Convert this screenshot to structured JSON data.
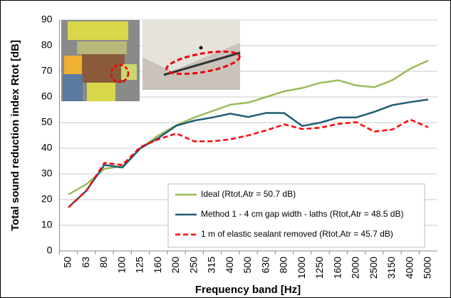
{
  "chart_data": {
    "type": "line",
    "y_label": "Total sound reduction index Rtot [dB]",
    "x_label": "Frequency band [Hz]",
    "categories": [
      "50",
      "63",
      "80",
      "100",
      "125",
      "160",
      "200",
      "250",
      "315",
      "400",
      "500",
      "630",
      "800",
      "1000",
      "1250",
      "1600",
      "2000",
      "2500",
      "3150",
      "4000",
      "5000"
    ],
    "series": [
      {
        "name": "Ideal (Rtot,Atr = 50.7 dB)",
        "color": "#9bbb59",
        "line_style": "solid",
        "values": [
          22,
          26,
          32,
          33,
          40,
          45,
          49,
          52,
          54.5,
          57,
          57.8,
          60,
          62.2,
          63.5,
          65.5,
          66.5,
          64.5,
          63.8,
          66.5,
          71,
          74.2
        ]
      },
      {
        "name": "Method 1 - 4 cm gap width - laths (Rtot,Atr = 48.5 dB)",
        "color": "#215e75",
        "line_style": "solid",
        "values": [
          17,
          23.5,
          33.5,
          32.5,
          40,
          44,
          48.8,
          50.8,
          52,
          53.5,
          52.2,
          53.8,
          53.7,
          48.7,
          50,
          52,
          52,
          54.2,
          56.8,
          58,
          59
        ]
      },
      {
        "name": "1 m of elastic sealant removed (Rtot,Atr = 45.7 dB)",
        "color": "#ff0000",
        "line_style": "dashed",
        "values": [
          17,
          23.5,
          34.3,
          33.5,
          40.5,
          43.5,
          45.8,
          42.7,
          42.7,
          43.5,
          45,
          47,
          49.3,
          47.5,
          48,
          49.5,
          50.2,
          46.5,
          47.3,
          51.2,
          48.2
        ]
      }
    ],
    "ylim": [
      0,
      90
    ],
    "yticks": [
      0,
      10,
      20,
      30,
      40,
      50,
      60,
      70,
      80,
      90
    ],
    "grid": true
  }
}
